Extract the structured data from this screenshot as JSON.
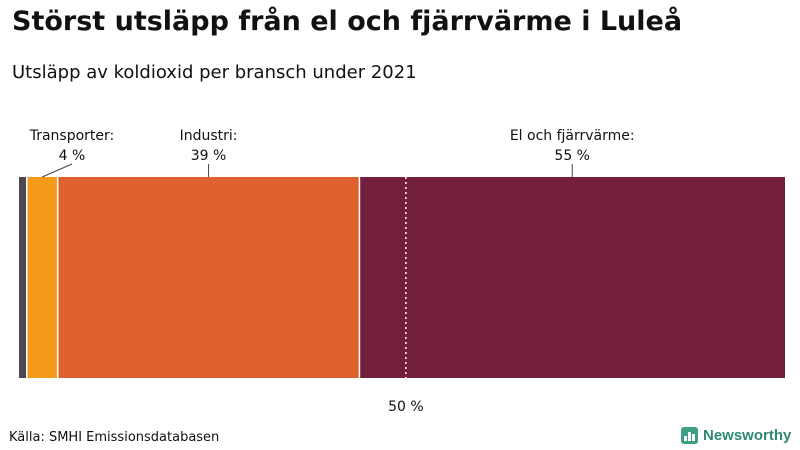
{
  "title": "Störst utsläpp från el och fjärrvärme i Luleå",
  "subtitle": "Utsläpp av koldioxid per bransch under 2021",
  "source": "Källa: SMHI Emissionsdatabasen",
  "brand": "Newsworthy",
  "chart_data": {
    "type": "bar",
    "orientation": "horizontal-stacked",
    "unit": "%",
    "reference_line": {
      "value": 50,
      "label": "50 %"
    },
    "segments": [
      {
        "name": "",
        "value": 1,
        "label_value": "",
        "color": "#4b4850"
      },
      {
        "name": "Transporter:",
        "value": 4,
        "label_value": "4 %",
        "color": "#f59a1b"
      },
      {
        "name": "Industri:",
        "value": 39,
        "label_value": "39 %",
        "color": "#e0602e"
      },
      {
        "name": "El och fjärrvärme:",
        "value": 55,
        "label_value": "55 %",
        "color": "#731e3d"
      }
    ],
    "xlim": [
      0,
      100
    ],
    "grid": false,
    "legend": "none"
  }
}
